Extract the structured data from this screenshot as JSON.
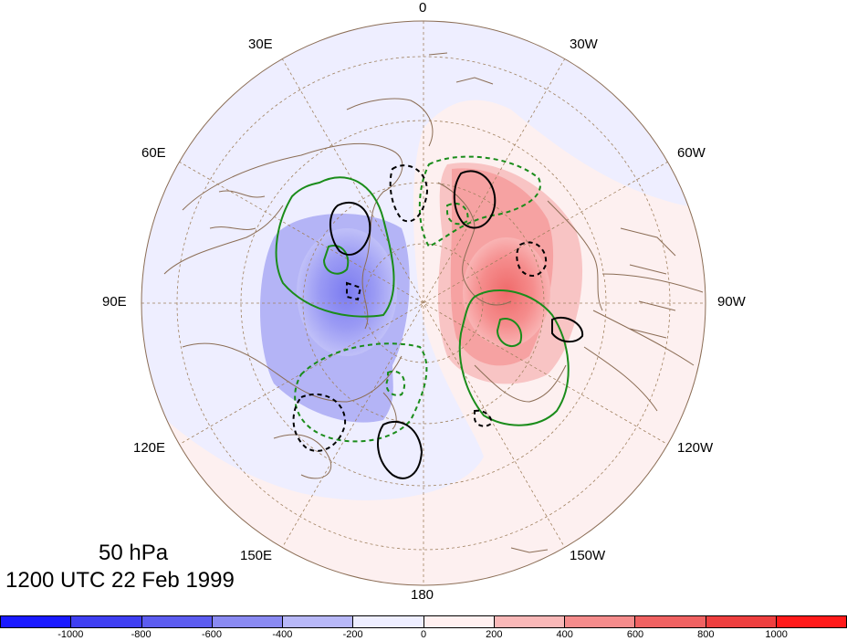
{
  "caption": {
    "level": "50 hPa",
    "time": "1200 UTC 22 Feb 1999"
  },
  "longitude_labels": [
    {
      "id": "lon-0",
      "text": "0"
    },
    {
      "id": "lon-30w",
      "text": "30W"
    },
    {
      "id": "lon-60w",
      "text": "60W"
    },
    {
      "id": "lon-90w",
      "text": "90W"
    },
    {
      "id": "lon-120w",
      "text": "120W"
    },
    {
      "id": "lon-150w",
      "text": "150W"
    },
    {
      "id": "lon-180",
      "text": "180"
    },
    {
      "id": "lon-150e",
      "text": "150E"
    },
    {
      "id": "lon-120e",
      "text": "120E"
    },
    {
      "id": "lon-90e",
      "text": "90E"
    },
    {
      "id": "lon-60e",
      "text": "60E"
    },
    {
      "id": "lon-30e",
      "text": "30E"
    }
  ],
  "colorbar": {
    "colors": [
      "#1a1aff",
      "#3f3ff2",
      "#5c5cf0",
      "#8a8af2",
      "#b8b8f8",
      "#eeeeff",
      "#fff0f0",
      "#f9b8b8",
      "#f58c8c",
      "#f06262",
      "#ee3f3f",
      "#ff1a1a"
    ],
    "ticks": [
      "-1000",
      "-800",
      "-600",
      "-400",
      "-200",
      "0",
      "200",
      "400",
      "600",
      "800",
      "1000"
    ]
  },
  "style": {
    "coast_color": "#8b6d55",
    "grid_color": "#a0815f",
    "green_contour": "#1a8c1a",
    "black_contour": "#000000"
  }
}
